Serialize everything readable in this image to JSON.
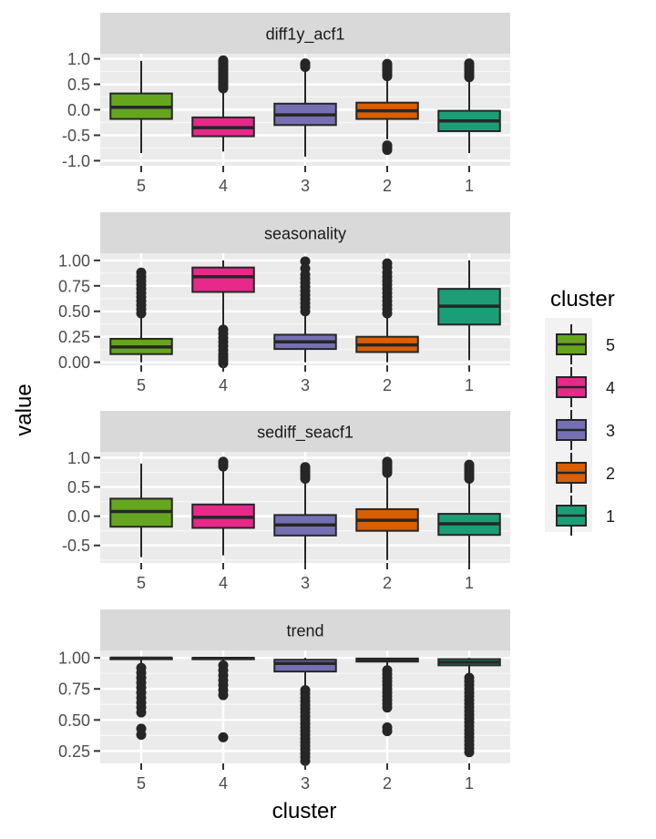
{
  "chart_data": {
    "type": "boxplot",
    "xlabel": "cluster",
    "ylabel": "value",
    "categories": [
      "5",
      "4",
      "3",
      "2",
      "1"
    ],
    "legend": {
      "title": "cluster",
      "placement": "right",
      "entries": [
        {
          "label": "5",
          "color": "#66A61E"
        },
        {
          "label": "4",
          "color": "#E7298A"
        },
        {
          "label": "3",
          "color": "#7570B3"
        },
        {
          "label": "2",
          "color": "#D95F02"
        },
        {
          "label": "1",
          "color": "#1B9E77"
        }
      ]
    },
    "facets": [
      {
        "title": "diff1y_acf1",
        "ylim": [
          -1.1,
          1.1
        ],
        "yticks": [
          -1.0,
          -0.5,
          0.0,
          0.5,
          1.0
        ],
        "ytick_labels": [
          "-1.0",
          "-0.5",
          "0.0",
          "0.5",
          "1.0"
        ],
        "boxes": [
          {
            "cluster": "5",
            "whisker_low": -0.85,
            "q1": -0.18,
            "median": 0.05,
            "q3": 0.32,
            "whisker_high": 0.96,
            "outliers": []
          },
          {
            "cluster": "4",
            "whisker_low": -0.82,
            "q1": -0.52,
            "median": -0.35,
            "q3": -0.15,
            "whisker_high": 0.38,
            "outliers": [
              0.42,
              0.46,
              0.5,
              0.54,
              0.58,
              0.62,
              0.66,
              0.7,
              0.74,
              0.78,
              0.82,
              0.86,
              0.9,
              0.94,
              0.97
            ]
          },
          {
            "cluster": "3",
            "whisker_low": -0.92,
            "q1": -0.3,
            "median": -0.1,
            "q3": 0.12,
            "whisker_high": 0.8,
            "outliers": [
              0.84,
              0.88,
              0.91
            ]
          },
          {
            "cluster": "2",
            "whisker_low": -0.58,
            "q1": -0.18,
            "median": -0.02,
            "q3": 0.14,
            "whisker_high": 0.62,
            "outliers": [
              -0.7,
              -0.74,
              -0.79,
              0.66,
              0.7,
              0.74,
              0.78,
              0.82,
              0.86,
              0.9
            ]
          },
          {
            "cluster": "1",
            "whisker_low": -0.85,
            "q1": -0.42,
            "median": -0.22,
            "q3": -0.02,
            "whisker_high": 0.6,
            "outliers": [
              0.64,
              0.68,
              0.72,
              0.76,
              0.8,
              0.84,
              0.88,
              0.91
            ]
          }
        ]
      },
      {
        "title": "seasonality",
        "ylim": [
          -0.03,
          1.07
        ],
        "yticks": [
          0.0,
          0.25,
          0.5,
          0.75,
          1.0
        ],
        "ytick_labels": [
          "0.00",
          "0.25",
          "0.50",
          "0.75",
          "1.00"
        ],
        "boxes": [
          {
            "cluster": "5",
            "whisker_low": 0.0,
            "q1": 0.08,
            "median": 0.15,
            "q3": 0.23,
            "whisker_high": 0.45,
            "outliers": [
              0.48,
              0.52,
              0.56,
              0.6,
              0.64,
              0.68,
              0.72,
              0.76,
              0.8,
              0.84,
              0.88
            ]
          },
          {
            "cluster": "4",
            "whisker_low": 0.35,
            "q1": 0.69,
            "median": 0.84,
            "q3": 0.93,
            "whisker_high": 1.0,
            "outliers": [
              -0.01,
              0.02,
              0.05,
              0.08,
              0.12,
              0.16,
              0.2,
              0.24,
              0.28,
              0.32
            ]
          },
          {
            "cluster": "3",
            "whisker_low": 0.0,
            "q1": 0.13,
            "median": 0.2,
            "q3": 0.27,
            "whisker_high": 0.47,
            "outliers": [
              0.5,
              0.54,
              0.58,
              0.62,
              0.66,
              0.7,
              0.74,
              0.78,
              0.82,
              0.86,
              0.92,
              0.99
            ]
          },
          {
            "cluster": "2",
            "whisker_low": 0.0,
            "q1": 0.1,
            "median": 0.17,
            "q3": 0.25,
            "whisker_high": 0.45,
            "outliers": [
              0.48,
              0.52,
              0.56,
              0.6,
              0.64,
              0.68,
              0.72,
              0.76,
              0.8,
              0.84,
              0.88,
              0.93,
              0.97
            ]
          },
          {
            "cluster": "1",
            "whisker_low": 0.02,
            "q1": 0.37,
            "median": 0.55,
            "q3": 0.72,
            "whisker_high": 1.0,
            "outliers": []
          }
        ]
      },
      {
        "title": "sediff_seacf1",
        "ylim": [
          -0.8,
          1.1
        ],
        "yticks": [
          -0.5,
          0.0,
          0.5,
          1.0
        ],
        "ytick_labels": [
          "-0.5",
          "0.0",
          "0.5",
          "1.0"
        ],
        "boxes": [
          {
            "cluster": "5",
            "whisker_low": -0.7,
            "q1": -0.18,
            "median": 0.08,
            "q3": 0.3,
            "whisker_high": 0.9,
            "outliers": []
          },
          {
            "cluster": "4",
            "whisker_low": -0.67,
            "q1": -0.2,
            "median": -0.02,
            "q3": 0.2,
            "whisker_high": 0.8,
            "outliers": [
              0.85,
              0.9,
              0.93
            ]
          },
          {
            "cluster": "3",
            "whisker_low": -0.8,
            "q1": -0.33,
            "median": -0.15,
            "q3": 0.02,
            "whisker_high": 0.6,
            "outliers": [
              0.64,
              0.68,
              0.72,
              0.76,
              0.8,
              0.84
            ]
          },
          {
            "cluster": "2",
            "whisker_low": -0.75,
            "q1": -0.25,
            "median": -0.07,
            "q3": 0.12,
            "whisker_high": 0.7,
            "outliers": [
              0.74,
              0.78,
              0.82,
              0.86,
              0.9,
              0.93
            ]
          },
          {
            "cluster": "1",
            "whisker_low": -0.8,
            "q1": -0.32,
            "median": -0.13,
            "q3": 0.04,
            "whisker_high": 0.6,
            "outliers": [
              0.64,
              0.68,
              0.72,
              0.76,
              0.8,
              0.84,
              0.88
            ]
          }
        ]
      },
      {
        "title": "trend",
        "ylim": [
          0.15,
          1.06
        ],
        "yticks": [
          0.25,
          0.5,
          0.75,
          1.0
        ],
        "ytick_labels": [
          "0.25",
          "0.50",
          "0.75",
          "1.00"
        ],
        "boxes": [
          {
            "cluster": "5",
            "whisker_low": 0.94,
            "q1": 0.995,
            "median": 0.998,
            "q3": 1.0,
            "whisker_high": 1.0,
            "outliers": [
              0.38,
              0.43,
              0.56,
              0.6,
              0.64,
              0.68,
              0.72,
              0.76,
              0.8,
              0.84,
              0.88,
              0.92
            ]
          },
          {
            "cluster": "4",
            "whisker_low": 0.96,
            "q1": 0.99,
            "median": 0.996,
            "q3": 1.0,
            "whisker_high": 1.0,
            "outliers": [
              0.36,
              0.7,
              0.74,
              0.78,
              0.82,
              0.86,
              0.9,
              0.94
            ]
          },
          {
            "cluster": "3",
            "whisker_low": 0.77,
            "q1": 0.89,
            "median": 0.955,
            "q3": 0.985,
            "whisker_high": 1.0,
            "outliers": [
              0.17,
              0.2,
              0.23,
              0.26,
              0.29,
              0.32,
              0.35,
              0.38,
              0.41,
              0.44,
              0.47,
              0.5,
              0.53,
              0.56,
              0.59,
              0.62,
              0.65,
              0.68,
              0.71,
              0.74
            ]
          },
          {
            "cluster": "2",
            "whisker_low": 0.93,
            "q1": 0.97,
            "median": 0.985,
            "q3": 0.995,
            "whisker_high": 1.0,
            "outliers": [
              0.41,
              0.44,
              0.6,
              0.63,
              0.66,
              0.69,
              0.72,
              0.75,
              0.78,
              0.81,
              0.84,
              0.87,
              0.9
            ]
          },
          {
            "cluster": "1",
            "whisker_low": 0.87,
            "q1": 0.94,
            "median": 0.965,
            "q3": 0.99,
            "whisker_high": 1.0,
            "outliers": [
              0.24,
              0.27,
              0.3,
              0.33,
              0.36,
              0.39,
              0.42,
              0.45,
              0.48,
              0.51,
              0.54,
              0.57,
              0.6,
              0.63,
              0.66,
              0.69,
              0.72,
              0.75,
              0.78,
              0.81,
              0.84
            ]
          }
        ]
      }
    ]
  }
}
